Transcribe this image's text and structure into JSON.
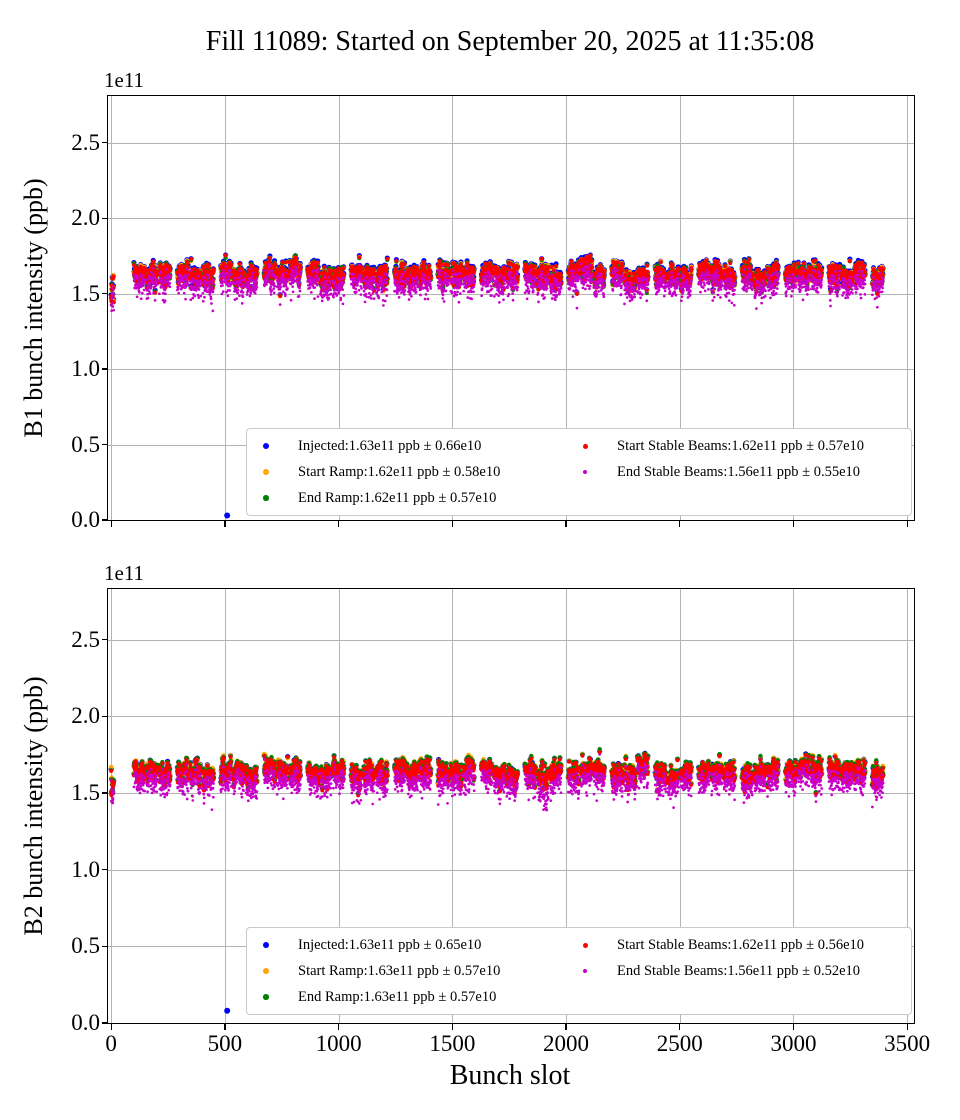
{
  "title": "Fill 11089: Started on September 20, 2025 at 11:35:08",
  "xlabel": "Bunch slot",
  "offset_label": "1e11",
  "x_tick_labels": [
    "0",
    "500",
    "1000",
    "1500",
    "2000",
    "2500",
    "3000",
    "3500"
  ],
  "y_tick_labels": [
    "0.0",
    "0.5",
    "1.0",
    "1.5",
    "2.0",
    "2.5"
  ],
  "plots": [
    {
      "id": "b1",
      "ylabel": "B1 bunch intensity (ppb)",
      "legend": [
        {
          "label": "Injected:1.63e11 ppb ± 0.66e10",
          "color": "#0000ff"
        },
        {
          "label": "Start Ramp:1.62e11 ppb ± 0.58e10",
          "color": "#ffa500"
        },
        {
          "label": "End Ramp:1.62e11 ppb ± 0.57e10",
          "color": "#008000"
        },
        {
          "label": "Start Stable Beams:1.62e11 ppb ± 0.57e10",
          "color": "#ff0000"
        },
        {
          "label": "End Stable Beams:1.56e11 ppb ± 0.55e10",
          "color": "#c800c8"
        }
      ]
    },
    {
      "id": "b2",
      "ylabel": "B2 bunch intensity (ppb)",
      "legend": [
        {
          "label": "Injected:1.63e11 ppb ± 0.65e10",
          "color": "#0000ff"
        },
        {
          "label": "Start Ramp:1.63e11 ppb ± 0.57e10",
          "color": "#ffa500"
        },
        {
          "label": "End Ramp:1.63e11 ppb ± 0.57e10",
          "color": "#008000"
        },
        {
          "label": "Start Stable Beams:1.62e11 ppb ± 0.56e10",
          "color": "#ff0000"
        },
        {
          "label": "End Stable Beams:1.56e11 ppb ± 0.52e10",
          "color": "#c800c8"
        }
      ]
    }
  ],
  "chart_data": [
    {
      "type": "scatter",
      "title": "Fill 11089: Started on September 20, 2025 at 11:35:08",
      "ylabel": "B1 bunch intensity (ppb)",
      "xlabel": "Bunch slot",
      "y_unit_factor": "1e11",
      "xlim": [
        -14,
        3530
      ],
      "ylim": [
        0,
        2.81
      ],
      "x_ticks": [
        0,
        500,
        1000,
        1500,
        2000,
        2500,
        3000,
        3500
      ],
      "y_ticks": [
        0.0,
        0.5,
        1.0,
        1.5,
        2.0,
        2.5
      ],
      "grid": true,
      "legend_position": "lower center, two columns",
      "series": [
        {
          "name": "Injected",
          "color": "#0000ff",
          "mean_e11": 1.63,
          "sigma_e11": 0.066
        },
        {
          "name": "Start Ramp",
          "color": "#ffa500",
          "mean_e11": 1.62,
          "sigma_e11": 0.058
        },
        {
          "name": "End Ramp",
          "color": "#008000",
          "mean_e11": 1.62,
          "sigma_e11": 0.057
        },
        {
          "name": "Start Stable Beams",
          "color": "#ff0000",
          "mean_e11": 1.62,
          "sigma_e11": 0.057
        },
        {
          "name": "End Stable Beams",
          "color": "#c800c8",
          "mean_e11": 1.56,
          "sigma_e11": 0.055
        }
      ],
      "bunch_pattern": {
        "singles_start": 0,
        "singles_count": 12,
        "first_train_slot": 100,
        "train_length": 48,
        "trains_per_group": 3,
        "intra_train_gap": 8,
        "group_gap": 31,
        "last_slot": 3445
      },
      "outlier": {
        "series": "Injected",
        "slot": 510,
        "value_e11": 0.03
      },
      "dip": null,
      "seed": 7
    },
    {
      "type": "scatter",
      "title": "Fill 11089: Started on September 20, 2025 at 11:35:08",
      "ylabel": "B2 bunch intensity (ppb)",
      "xlabel": "Bunch slot",
      "y_unit_factor": "1e11",
      "xlim": [
        -14,
        3530
      ],
      "ylim": [
        0,
        2.83
      ],
      "x_ticks": [
        0,
        500,
        1000,
        1500,
        2000,
        2500,
        3000,
        3500
      ],
      "y_ticks": [
        0.0,
        0.5,
        1.0,
        1.5,
        2.0,
        2.5
      ],
      "grid": true,
      "legend_position": "lower center, two columns",
      "series": [
        {
          "name": "Injected",
          "color": "#0000ff",
          "mean_e11": 1.63,
          "sigma_e11": 0.065
        },
        {
          "name": "Start Ramp",
          "color": "#ffa500",
          "mean_e11": 1.63,
          "sigma_e11": 0.057
        },
        {
          "name": "End Ramp",
          "color": "#008000",
          "mean_e11": 1.63,
          "sigma_e11": 0.057
        },
        {
          "name": "Start Stable Beams",
          "color": "#ff0000",
          "mean_e11": 1.62,
          "sigma_e11": 0.056
        },
        {
          "name": "End Stable Beams",
          "color": "#c800c8",
          "mean_e11": 1.56,
          "sigma_e11": 0.052
        }
      ],
      "bunch_pattern": {
        "singles_start": 0,
        "singles_count": 12,
        "first_train_slot": 100,
        "train_length": 48,
        "trains_per_group": 3,
        "intra_train_gap": 8,
        "group_gap": 31,
        "last_slot": 3445
      },
      "outlier": {
        "series": "Injected",
        "slot": 510,
        "value_e11": 0.08
      },
      "dip": {
        "center_slot": 1910,
        "half_width": 38,
        "all_series_depth_e11": 0.05,
        "extra_end_stable_depth_e11": 0.12
      },
      "seed": 13
    }
  ]
}
